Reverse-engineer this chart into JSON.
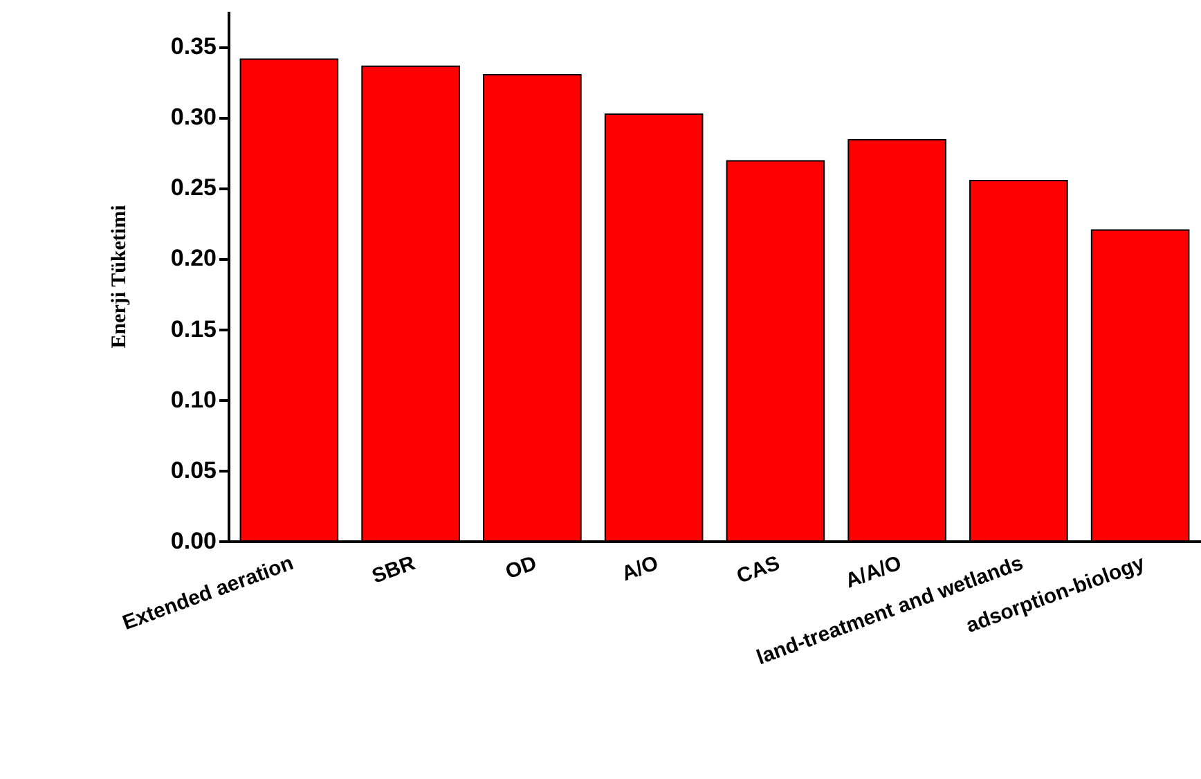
{
  "chart_data": {
    "type": "bar",
    "ylabel": "Enerji Tüketimi",
    "categories": [
      "Extended aeration",
      "SBR",
      "OD",
      "A/O",
      "CAS",
      "A/A/O",
      "land-treatment and wetlands",
      "adsorption-biology"
    ],
    "values": [
      0.341,
      0.336,
      0.33,
      0.302,
      0.269,
      0.284,
      0.255,
      0.22
    ],
    "color": "#ff0000",
    "ylim": [
      0,
      0.375
    ],
    "yticks": [
      {
        "value": 0,
        "label": "0.00"
      },
      {
        "value": 0.05,
        "label": "0.05"
      },
      {
        "value": 0.1,
        "label": "0.10"
      },
      {
        "value": 0.15,
        "label": "0.15"
      },
      {
        "value": 0.2,
        "label": "0.20"
      },
      {
        "value": 0.25,
        "label": "0.25"
      },
      {
        "value": 0.3,
        "label": "0.30"
      },
      {
        "value": 0.35,
        "label": "0.35"
      }
    ],
    "grid": false
  }
}
